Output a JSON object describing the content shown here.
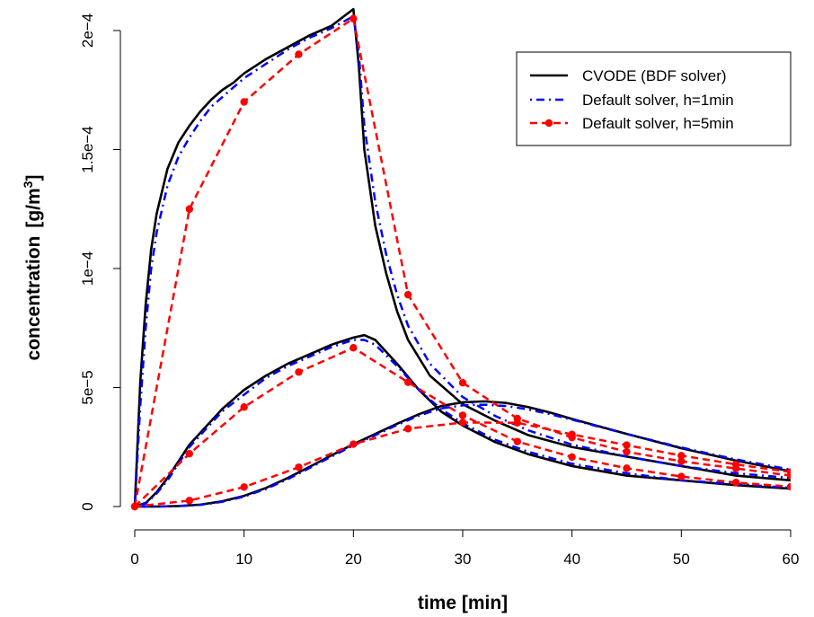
{
  "chart_data": {
    "type": "line",
    "title": "",
    "xlabel": "time [min]",
    "ylabel_text": "concentration",
    "ylabel_unit": "[g/m",
    "ylabel_unit_exp": "3",
    "ylabel_unit_close": "]",
    "xlim": [
      0,
      62
    ],
    "ylim": [
      0,
      0.000201
    ],
    "x_ticks": [
      0,
      10,
      20,
      30,
      40,
      50,
      60
    ],
    "x_tick_labels": [
      "0",
      "10",
      "20",
      "30",
      "40",
      "50",
      "60"
    ],
    "y_ticks": [
      0,
      5e-05,
      0.0001,
      0.00015,
      0.0002
    ],
    "y_tick_labels": [
      "0",
      "5e−5",
      "1e−4",
      "1.5e−4",
      "2e−4"
    ],
    "grid": false,
    "legend_position": "top-right",
    "legend": [
      {
        "label": "CVODE (BDF solver)",
        "color": "#000000",
        "style": "solid"
      },
      {
        "label": "Default solver, h=1min",
        "color": "#0000ff",
        "style": "dashdot"
      },
      {
        "label": "Default solver, h=5min",
        "color": "#ff0000",
        "style": "dashed-points"
      }
    ],
    "series": [
      {
        "solver": "cvode",
        "color": "#000000",
        "style": "solid",
        "x": [
          0,
          0.5,
          1,
          1.5,
          2,
          3,
          4,
          5,
          6,
          7,
          8,
          9,
          10,
          12,
          14,
          16,
          18,
          20,
          20.5,
          21,
          22,
          23,
          24,
          25,
          27,
          30,
          33,
          36,
          40,
          45,
          50,
          55,
          60,
          62
        ],
        "y": [
          0,
          5.2e-05,
          8.5e-05,
          0.000108,
          0.000123,
          0.000142,
          0.000153,
          0.00016,
          0.000166,
          0.000171,
          0.000175,
          0.000178,
          0.000182,
          0.000188,
          0.000193,
          0.000198,
          0.000202,
          0.000209,
          0.000185,
          0.00015,
          0.000118,
          9.8e-05,
          8.2e-05,
          7e-05,
          5.5e-05,
          4.3e-05,
          3.6e-05,
          3e-05,
          2.5e-05,
          2.1e-05,
          1.7e-05,
          1.3e-05,
          1.1e-05,
          1e-05
        ]
      },
      {
        "solver": "cvode",
        "color": "#000000",
        "style": "solid",
        "x": [
          0,
          1,
          2,
          3,
          4,
          5,
          6,
          8,
          10,
          12,
          14,
          16,
          18,
          20,
          21,
          22,
          24,
          26,
          28,
          30,
          33,
          36,
          40,
          45,
          50,
          55,
          60,
          62
        ],
        "y": [
          0,
          1.5e-06,
          6e-06,
          1.2e-05,
          1.9e-05,
          2.6e-05,
          3.1e-05,
          4.1e-05,
          4.9e-05,
          5.5e-05,
          6e-05,
          6.4e-05,
          6.8e-05,
          7.1e-05,
          7.2e-05,
          7e-05,
          6e-05,
          4.9e-05,
          4e-05,
          3.4e-05,
          2.7e-05,
          2.2e-05,
          1.7e-05,
          1.3e-05,
          1.1e-05,
          9e-06,
          7.5e-06,
          7e-06
        ]
      },
      {
        "solver": "cvode",
        "color": "#000000",
        "style": "solid",
        "x": [
          0,
          2,
          4,
          6,
          8,
          10,
          12,
          14,
          16,
          18,
          20,
          22,
          24,
          26,
          28,
          30,
          32,
          34,
          36,
          38,
          40,
          45,
          50,
          55,
          60,
          62
        ],
        "y": [
          0,
          0,
          2e-07,
          8e-07,
          2.2e-06,
          4.5e-06,
          7.8e-06,
          1.2e-05,
          1.67e-05,
          2.15e-05,
          2.62e-05,
          3.05e-05,
          3.48e-05,
          3.88e-05,
          4.22e-05,
          4.38e-05,
          4.42e-05,
          4.35e-05,
          4.18e-05,
          3.95e-05,
          3.68e-05,
          3.05e-05,
          2.45e-05,
          1.93e-05,
          1.48e-05,
          1.35e-05
        ]
      },
      {
        "solver": "h1",
        "color": "#0000ff",
        "style": "dashdot",
        "x": [
          0,
          0.5,
          1,
          1.5,
          2,
          3,
          4,
          5,
          6,
          7,
          8,
          9,
          10,
          12,
          14,
          16,
          18,
          20,
          20.5,
          21,
          22,
          23,
          24,
          25,
          27,
          30,
          33,
          36,
          40,
          45,
          50,
          55,
          60,
          62
        ],
        "y": [
          0,
          4.2e-05,
          7.5e-05,
          0.0001,
          0.000115,
          0.000135,
          0.000147,
          0.000155,
          0.000162,
          0.000168,
          0.000172,
          0.000176,
          0.00018,
          0.000186,
          0.000192,
          0.000197,
          0.000201,
          0.000206,
          0.00019,
          0.00016,
          0.000128,
          0.000106,
          8.9e-05,
          7.6e-05,
          6e-05,
          4.6e-05,
          3.8e-05,
          3.2e-05,
          2.6e-05,
          2.1e-05,
          1.7e-05,
          1.4e-05,
          1.2e-05,
          1.1e-05
        ]
      },
      {
        "solver": "h1",
        "color": "#0000ff",
        "style": "dashdot",
        "x": [
          0,
          1,
          2,
          3,
          4,
          5,
          6,
          8,
          10,
          12,
          14,
          16,
          18,
          20,
          21,
          22,
          24,
          26,
          28,
          30,
          33,
          36,
          40,
          45,
          50,
          55,
          60,
          62
        ],
        "y": [
          0,
          1.2e-06,
          5.5e-06,
          1.1e-05,
          1.8e-05,
          2.5e-05,
          3e-05,
          4e-05,
          4.7e-05,
          5.4e-05,
          5.9e-05,
          6.3e-05,
          6.7e-05,
          7e-05,
          7e-05,
          6.8e-05,
          5.9e-05,
          4.9e-05,
          4.1e-05,
          3.5e-05,
          2.8e-05,
          2.3e-05,
          1.8e-05,
          1.4e-05,
          1.1e-05,
          9.5e-06,
          7.8e-06,
          7.2e-06
        ]
      },
      {
        "solver": "h1",
        "color": "#0000ff",
        "style": "dashdot",
        "x": [
          0,
          2,
          4,
          6,
          8,
          10,
          12,
          14,
          16,
          18,
          20,
          22,
          24,
          26,
          28,
          30,
          32,
          34,
          36,
          38,
          40,
          45,
          50,
          55,
          60,
          62
        ],
        "y": [
          0,
          0,
          2e-07,
          7e-07,
          2e-06,
          4.2e-06,
          7.4e-06,
          1.15e-05,
          1.62e-05,
          2.1e-05,
          2.57e-05,
          3e-05,
          3.43e-05,
          3.82e-05,
          4.12e-05,
          4.25e-05,
          4.28e-05,
          4.22e-05,
          4.08e-05,
          3.88e-05,
          3.65e-05,
          3.05e-05,
          2.48e-05,
          1.98e-05,
          1.55e-05,
          1.42e-05
        ]
      },
      {
        "solver": "h5",
        "color": "#ff0000",
        "style": "dashed-points",
        "x": [
          0,
          5,
          10,
          15,
          20,
          25,
          30,
          35,
          40,
          45,
          50,
          55,
          60,
          62
        ],
        "y": [
          0,
          0.000125,
          0.00017,
          0.00019,
          0.000205,
          8.9e-05,
          5.2e-05,
          3.7e-05,
          2.9e-05,
          2.3e-05,
          1.9e-05,
          1.6e-05,
          1.3e-05,
          1.3e-05
        ]
      },
      {
        "solver": "h5",
        "color": "#ff0000",
        "style": "dashed-points",
        "x": [
          0,
          5,
          10,
          15,
          20,
          25,
          30,
          35,
          40,
          45,
          50,
          55,
          60,
          62
        ],
        "y": [
          0,
          2.22e-05,
          4.18e-05,
          5.65e-05,
          6.67e-05,
          5.22e-05,
          3.83e-05,
          2.73e-05,
          2.08e-05,
          1.61e-05,
          1.26e-05,
          1.01e-05,
          8.3e-06,
          7.8e-06
        ]
      },
      {
        "solver": "h5",
        "color": "#ff0000",
        "style": "dashed-points",
        "x": [
          0,
          5,
          10,
          15,
          20,
          25,
          30,
          35,
          40,
          45,
          50,
          55,
          60,
          62
        ],
        "y": [
          0,
          2.5e-06,
          8.2e-06,
          1.65e-05,
          2.62e-05,
          3.27e-05,
          3.53e-05,
          3.52e-05,
          3.03e-05,
          2.58e-05,
          2.14e-05,
          1.77e-05,
          1.45e-05,
          1.38e-05
        ]
      }
    ]
  }
}
